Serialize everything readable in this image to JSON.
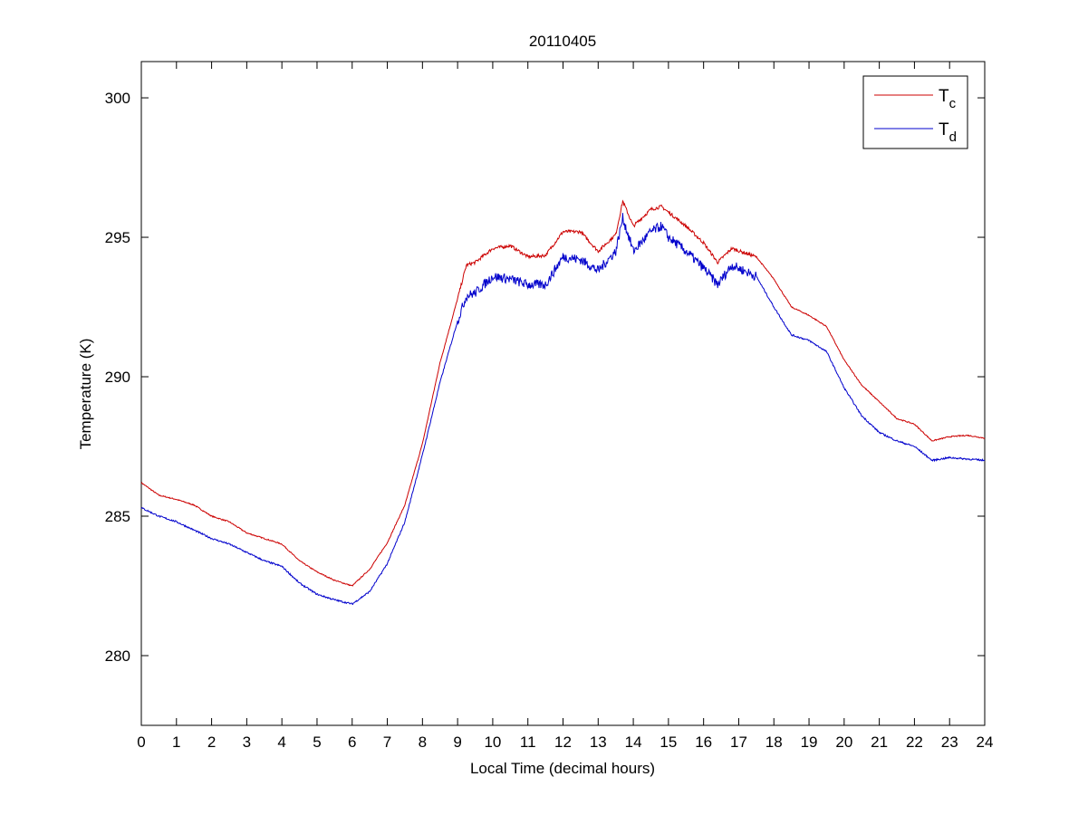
{
  "chart_data": {
    "type": "line",
    "title": "20110405",
    "xlabel": "Local Time (decimal hours)",
    "ylabel": "Temperature (K)",
    "xlim": [
      0,
      24
    ],
    "ylim": [
      277.5,
      301.3
    ],
    "xticks": [
      0,
      1,
      2,
      3,
      4,
      5,
      6,
      7,
      8,
      9,
      10,
      11,
      12,
      13,
      14,
      15,
      16,
      17,
      18,
      19,
      20,
      21,
      22,
      23,
      24
    ],
    "yticks": [
      280,
      285,
      290,
      295,
      300
    ],
    "grid": false,
    "legend_position": "top-right",
    "series": [
      {
        "name": "T",
        "subscript": "c",
        "color": "#cc0000",
        "x": [
          0,
          0.5,
          1,
          1.5,
          2,
          2.5,
          3,
          3.5,
          4,
          4.5,
          5,
          5.5,
          6,
          6.5,
          7,
          7.5,
          8,
          8.5,
          9,
          9.25,
          9.5,
          10,
          10.5,
          11,
          11.5,
          12,
          12.5,
          13,
          13.5,
          13.7,
          14,
          14.5,
          14.8,
          15,
          15.5,
          16,
          16.4,
          16.8,
          17.5,
          18,
          18.5,
          19,
          19.5,
          20,
          20.5,
          21,
          21.5,
          22,
          22.5,
          23,
          23.5,
          24
        ],
        "y": [
          286.2,
          285.75,
          285.6,
          285.4,
          285.0,
          284.8,
          284.4,
          284.2,
          284.0,
          283.4,
          283.0,
          282.7,
          282.5,
          283.1,
          284.05,
          285.4,
          287.6,
          290.5,
          292.8,
          294.0,
          294.1,
          294.6,
          294.7,
          294.3,
          294.35,
          295.2,
          295.2,
          294.5,
          295.1,
          296.3,
          295.4,
          296.0,
          296.1,
          295.9,
          295.4,
          294.8,
          294.1,
          294.6,
          294.3,
          293.5,
          292.5,
          292.2,
          291.8,
          290.6,
          289.7,
          289.1,
          288.5,
          288.3,
          287.7,
          287.85,
          287.9,
          287.8
        ]
      },
      {
        "name": "T",
        "subscript": "d",
        "color": "#0000cc",
        "x": [
          0,
          0.5,
          1,
          1.5,
          2,
          2.5,
          3,
          3.5,
          4,
          4.5,
          5,
          5.5,
          6,
          6.5,
          7,
          7.5,
          8,
          8.5,
          9,
          9.25,
          9.5,
          10,
          10.5,
          11,
          11.5,
          12,
          12.5,
          13,
          13.5,
          13.7,
          14,
          14.5,
          14.8,
          15,
          15.5,
          16,
          16.4,
          16.8,
          17.5,
          18,
          18.5,
          19,
          19.5,
          20,
          20.5,
          21,
          21.5,
          22,
          22.5,
          23,
          23.5,
          24
        ],
        "y": [
          285.3,
          285.0,
          284.8,
          284.5,
          284.2,
          284.0,
          283.7,
          283.4,
          283.2,
          282.6,
          282.2,
          282.0,
          281.85,
          282.3,
          283.3,
          284.8,
          287.2,
          289.8,
          292.0,
          292.9,
          293.0,
          293.6,
          293.5,
          293.3,
          293.3,
          294.3,
          294.2,
          293.8,
          294.5,
          295.7,
          294.5,
          295.2,
          295.4,
          295.0,
          294.5,
          293.9,
          293.3,
          294.0,
          293.6,
          292.5,
          291.5,
          291.3,
          290.9,
          289.6,
          288.6,
          288.0,
          287.7,
          287.5,
          287.0,
          287.1,
          287.05,
          287.0
        ]
      }
    ]
  }
}
